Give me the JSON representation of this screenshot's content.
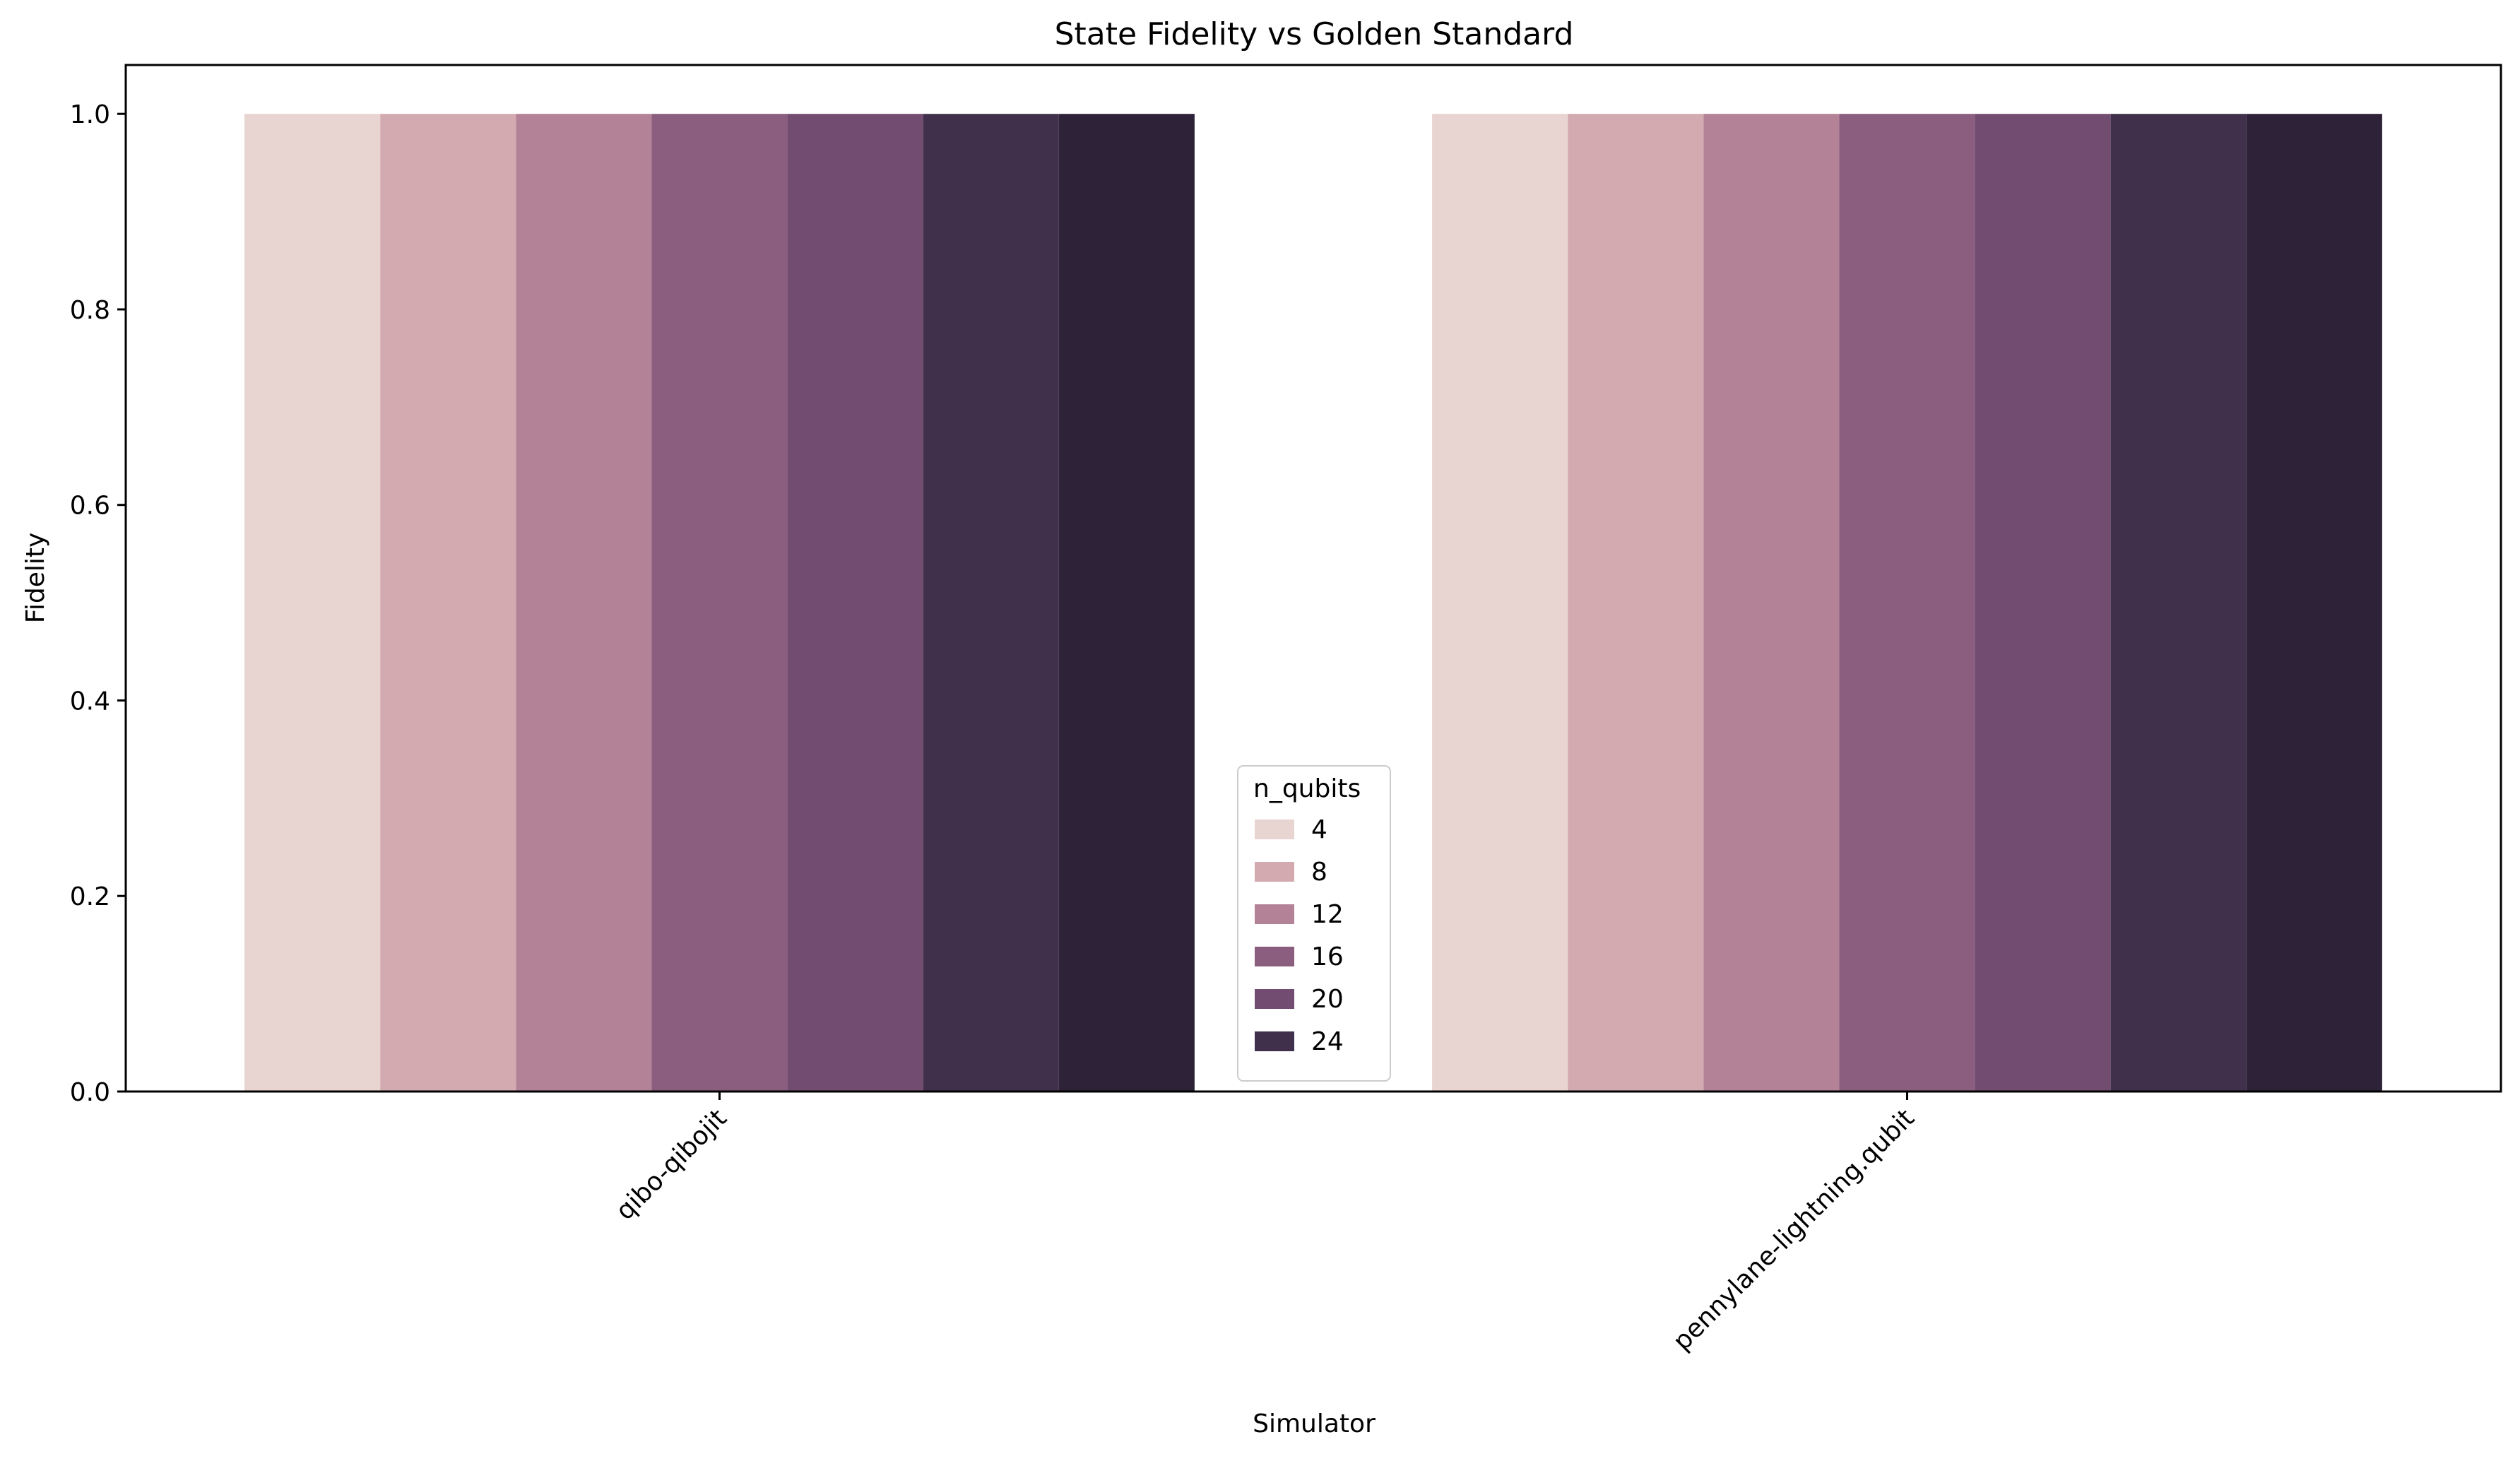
{
  "chart_data": {
    "type": "bar",
    "title": "State Fidelity vs Golden Standard",
    "xlabel": "Simulator",
    "ylabel": "Fidelity",
    "categories": [
      "qibo-qibojit",
      "pennylane-lightning.qubit"
    ],
    "ylim": [
      0,
      1.05
    ],
    "yticks": [
      "0.0",
      "0.2",
      "0.4",
      "0.6",
      "0.8",
      "1.0"
    ],
    "legend": {
      "title": "n_qubits",
      "position": "bottom-center"
    },
    "grid": false,
    "series": [
      {
        "name": "4",
        "color": "#e8d4d0",
        "values": [
          1.0,
          1.0
        ]
      },
      {
        "name": "8",
        "color": "#d4aab1",
        "values": [
          1.0,
          1.0
        ]
      },
      {
        "name": "12",
        "color": "#b48297",
        "values": [
          1.0,
          1.0
        ]
      },
      {
        "name": "16",
        "color": "#8b5e80",
        "values": [
          1.0,
          1.0
        ]
      },
      {
        "name": "20",
        "color": "#724d71",
        "values": [
          1.0,
          1.0
        ]
      },
      {
        "name": "24",
        "color": "#41304b",
        "values": [
          1.0,
          1.0
        ]
      },
      {
        "name": "",
        "color": "#2e2239",
        "values": [
          1.0,
          1.0
        ]
      }
    ]
  }
}
